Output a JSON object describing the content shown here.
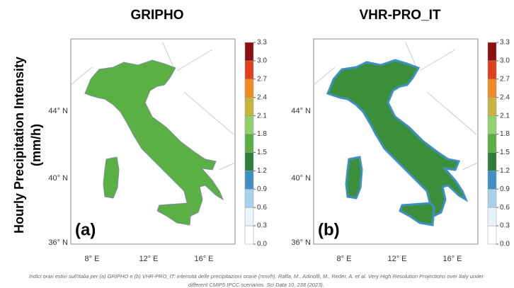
{
  "y_label": [
    "Hourly Precipitation Intensity",
    "(mm/h)"
  ],
  "panels": [
    {
      "title": "GRIPHO",
      "label": "(a)"
    },
    {
      "title": "VHR-PRO_IT",
      "label": "(b)"
    }
  ],
  "lat_labels": [
    "44° N",
    "40° N",
    "36° N"
  ],
  "lon_labels": [
    "8° E",
    "12° E",
    "16° E"
  ],
  "colorbar": {
    "ticks": [
      "0.0",
      "0.3",
      "0.6",
      "0.9",
      "1.2",
      "1.5",
      "1.8",
      "2.1",
      "2.4",
      "2.7",
      "3.0",
      "3.3"
    ],
    "colors": [
      "#ffffff",
      "#e6f3fa",
      "#a6d2ec",
      "#3f8fc4",
      "#2e7d3a",
      "#5bb043",
      "#8fd16a",
      "#c8b43c",
      "#f08a24",
      "#e0401c",
      "#8c1010"
    ]
  },
  "caption": [
    "Indici orari estivi sull'Italia per (a) GRIPHO e (b) VHR-PRO_IT: intensità delle precipitazioni orarie (mm/h). Raffa, M., Adinolfi, M., Reder, A. et al. Very High Resolution Projections over Italy under",
    "different CMIP5 IPCC scenarios. Sci Data 10, 238 (2023)."
  ]
}
